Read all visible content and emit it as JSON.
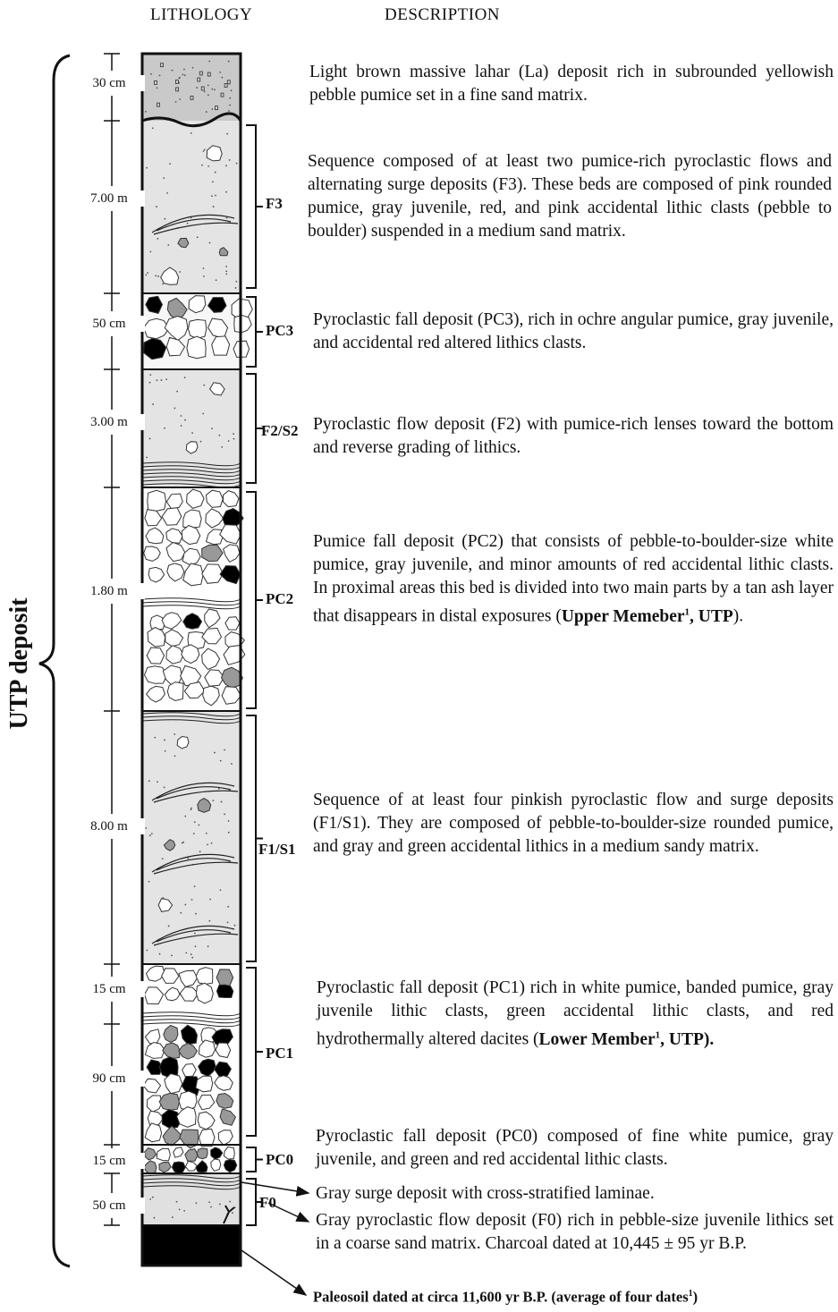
{
  "header": {
    "lithology": "LITHOLOGY",
    "description": "DESCRIPTION"
  },
  "deposit_label": "UTP deposit",
  "units": [
    {
      "thickness": [
        "30 cm"
      ],
      "description": "Light brown massive lahar (La) deposit rich in subrounded yellowish pebble pumice set in a fine sand matrix."
    },
    {
      "label": "F3",
      "thickness": [
        "7.00 m"
      ],
      "description": "Sequence composed of at least two pumice-rich pyroclastic flows and alternating surge deposits (F3). These beds are composed of pink rounded pumice, gray juvenile, red, and pink accidental lithic clasts (pebble to boulder) suspended in a medium sand matrix."
    },
    {
      "label": "PC3",
      "thickness": [
        "50 cm"
      ],
      "description": "Pyroclastic fall deposit (PC3), rich in ochre angular pumice, gray juvenile, and accidental red altered lithics clasts."
    },
    {
      "label": "F2/S2",
      "thickness": [
        "3.00 m"
      ],
      "description": "Pyroclastic flow deposit (F2) with pumice-rich lenses toward the bottom and reverse grading of lithics."
    },
    {
      "label": "PC2",
      "thickness": [
        "1.80 m"
      ],
      "description": "Pumice fall deposit (PC2) that consists of pebble-to-boulder-size white pumice, gray juvenile, and minor amounts of red accidental lithic clasts. In proximal areas this bed is divided into two main parts by a tan ash layer that disappears in distal exposures (",
      "emphasis": "Upper Memeber",
      "note": "1",
      "emphasis_end": ", UTP",
      "description_end": ")."
    },
    {
      "label": "F1/S1",
      "thickness": [
        "8.00 m"
      ],
      "description": "Sequence of at least four pinkish pyroclastic flow and surge deposits (F1/S1). They are composed of pebble-to-boulder-size rounded pumice, and gray and green accidental lithics in a medium sandy matrix."
    },
    {
      "label": "PC1",
      "thickness": [
        "15 cm",
        "90 cm"
      ],
      "description": "Pyroclastic fall deposit (PC1) rich in white pumice, banded pumice, gray juvenile lithic clasts, green accidental lithic clasts, and red hydrothermally altered dacites (",
      "emphasis": "Lower Member",
      "note": "1",
      "emphasis_end": ", UTP)."
    },
    {
      "label": "PC0",
      "thickness": [
        "15 cm"
      ],
      "description": "Pyroclastic fall deposit (PC0) composed of fine white pumice, gray juvenile, and green and red accidental lithic clasts."
    },
    {
      "label": "F0",
      "thickness": [
        "50 cm"
      ],
      "description": "Gray surge deposit with cross-stratified laminae.",
      "description_2": "Gray pyroclastic flow deposit (F0) rich in pebble-size  juvenile lithics set in a coarse sand matrix. Charcoal dated at 10,445 ± 95 yr B.P."
    },
    {
      "description": "Paleosoil dated at circa 11,600 yr B.P. (average of four dates",
      "note": "1",
      "description_end": ")"
    }
  ]
}
